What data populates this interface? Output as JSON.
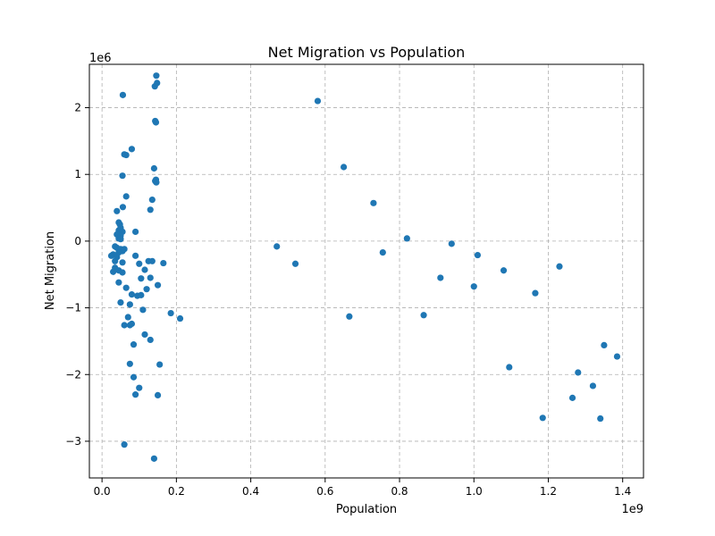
{
  "chart_data": {
    "type": "scatter",
    "title": "Net Migration vs Population",
    "xlabel": "Population",
    "ylabel": "Net Migration",
    "x_multiplier_label": "1e9",
    "y_multiplier_label": "1e6",
    "xlim": [
      -0.034,
      1.456
    ],
    "ylim": [
      -3.55,
      2.65
    ],
    "xticks": [
      0.0,
      0.2,
      0.4,
      0.6,
      0.8,
      1.0,
      1.2,
      1.4
    ],
    "xtick_labels": [
      "0.0",
      "0.2",
      "0.4",
      "0.6",
      "0.8",
      "1.0",
      "1.2",
      "1.4"
    ],
    "yticks": [
      -3,
      -2,
      -1,
      0,
      1,
      2
    ],
    "ytick_labels": [
      "−3",
      "−2",
      "−1",
      "0",
      "1",
      "2"
    ],
    "grid": true,
    "marker_color": "#1f77b4",
    "x_unit": "1e9",
    "y_unit": "1e6",
    "points": [
      [
        0.146,
        2.48
      ],
      [
        0.148,
        2.37
      ],
      [
        0.142,
        2.32
      ],
      [
        0.056,
        2.19
      ],
      [
        0.58,
        2.1
      ],
      [
        0.143,
        1.8
      ],
      [
        0.145,
        1.78
      ],
      [
        0.08,
        1.38
      ],
      [
        0.06,
        1.3
      ],
      [
        0.065,
        1.29
      ],
      [
        0.65,
        1.11
      ],
      [
        0.14,
        1.09
      ],
      [
        0.055,
        0.98
      ],
      [
        0.145,
        0.92
      ],
      [
        0.143,
        0.9
      ],
      [
        0.146,
        0.88
      ],
      [
        0.065,
        0.67
      ],
      [
        0.135,
        0.62
      ],
      [
        0.73,
        0.57
      ],
      [
        0.056,
        0.51
      ],
      [
        0.13,
        0.47
      ],
      [
        0.04,
        0.45
      ],
      [
        0.045,
        0.28
      ],
      [
        0.048,
        0.25
      ],
      [
        0.05,
        0.2
      ],
      [
        0.045,
        0.16
      ],
      [
        0.055,
        0.14
      ],
      [
        0.09,
        0.14
      ],
      [
        0.04,
        0.1
      ],
      [
        0.05,
        0.08
      ],
      [
        0.045,
        0.04
      ],
      [
        0.05,
        0.03
      ],
      [
        0.82,
        0.04
      ],
      [
        0.035,
        -0.08
      ],
      [
        0.04,
        -0.1
      ],
      [
        0.05,
        -0.12
      ],
      [
        0.055,
        -0.15
      ],
      [
        0.06,
        -0.12
      ],
      [
        0.045,
        -0.17
      ],
      [
        0.03,
        -0.2
      ],
      [
        0.025,
        -0.22
      ],
      [
        0.04,
        -0.24
      ],
      [
        0.47,
        -0.08
      ],
      [
        0.94,
        -0.04
      ],
      [
        0.755,
        -0.17
      ],
      [
        1.01,
        -0.21
      ],
      [
        0.09,
        -0.22
      ],
      [
        0.035,
        -0.3
      ],
      [
        0.055,
        -0.32
      ],
      [
        0.125,
        -0.3
      ],
      [
        0.135,
        -0.3
      ],
      [
        0.165,
        -0.33
      ],
      [
        0.1,
        -0.34
      ],
      [
        0.52,
        -0.34
      ],
      [
        0.035,
        -0.4
      ],
      [
        0.045,
        -0.44
      ],
      [
        0.03,
        -0.46
      ],
      [
        0.055,
        -0.47
      ],
      [
        0.115,
        -0.43
      ],
      [
        1.23,
        -0.38
      ],
      [
        1.08,
        -0.44
      ],
      [
        0.105,
        -0.56
      ],
      [
        0.13,
        -0.55
      ],
      [
        0.91,
        -0.55
      ],
      [
        0.045,
        -0.62
      ],
      [
        0.15,
        -0.66
      ],
      [
        0.065,
        -0.7
      ],
      [
        0.12,
        -0.72
      ],
      [
        1.0,
        -0.68
      ],
      [
        1.165,
        -0.78
      ],
      [
        0.08,
        -0.8
      ],
      [
        0.095,
        -0.82
      ],
      [
        0.105,
        -0.81
      ],
      [
        0.05,
        -0.92
      ],
      [
        0.075,
        -0.95
      ],
      [
        0.11,
        -1.03
      ],
      [
        0.185,
        -1.08
      ],
      [
        0.665,
        -1.13
      ],
      [
        0.865,
        -1.11
      ],
      [
        0.21,
        -1.16
      ],
      [
        0.07,
        -1.14
      ],
      [
        0.06,
        -1.26
      ],
      [
        0.075,
        -1.26
      ],
      [
        0.08,
        -1.24
      ],
      [
        0.115,
        -1.4
      ],
      [
        0.13,
        -1.48
      ],
      [
        0.085,
        -1.55
      ],
      [
        1.35,
        -1.56
      ],
      [
        1.385,
        -1.73
      ],
      [
        0.075,
        -1.84
      ],
      [
        0.155,
        -1.85
      ],
      [
        1.095,
        -1.89
      ],
      [
        1.28,
        -1.97
      ],
      [
        0.085,
        -2.04
      ],
      [
        1.32,
        -2.17
      ],
      [
        0.1,
        -2.2
      ],
      [
        0.09,
        -2.3
      ],
      [
        0.15,
        -2.31
      ],
      [
        1.265,
        -2.35
      ],
      [
        1.185,
        -2.65
      ],
      [
        1.34,
        -2.66
      ],
      [
        0.06,
        -3.05
      ],
      [
        0.14,
        -3.26
      ]
    ]
  }
}
